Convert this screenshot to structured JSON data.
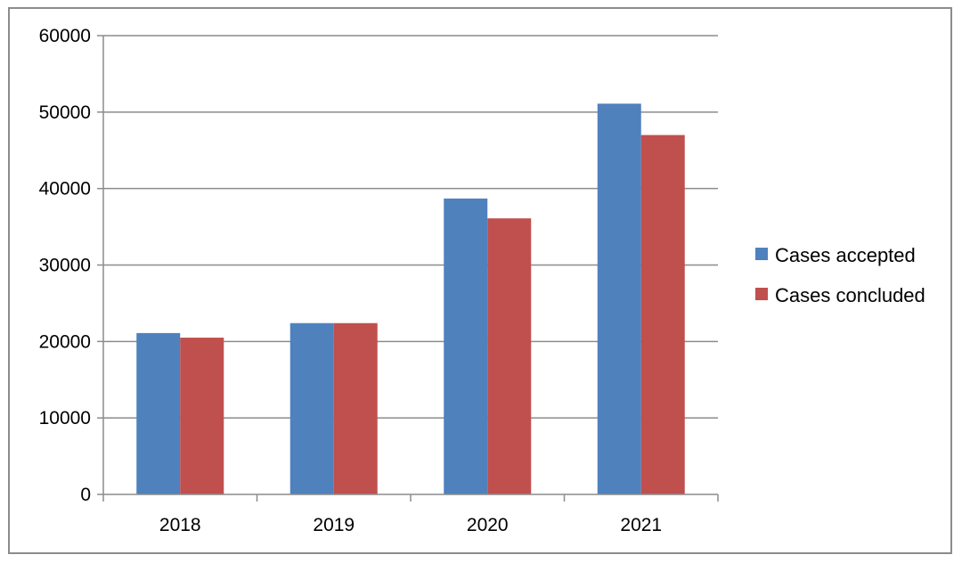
{
  "chart_data": {
    "type": "bar",
    "title": "",
    "xlabel": "",
    "ylabel": "",
    "categories": [
      "2018",
      "2019",
      "2020",
      "2021"
    ],
    "series": [
      {
        "name": "Cases accepted",
        "color": "#4f81bd",
        "values": [
          21100,
          22400,
          38700,
          51100
        ]
      },
      {
        "name": "Cases concluded",
        "color": "#c0504d",
        "values": [
          20500,
          22400,
          36100,
          47000
        ]
      }
    ],
    "ylim": [
      0,
      60000
    ],
    "yticks": [
      "0",
      "10000",
      "20000",
      "30000",
      "40000",
      "50000",
      "60000"
    ],
    "grid": true,
    "legend_position": "right"
  }
}
